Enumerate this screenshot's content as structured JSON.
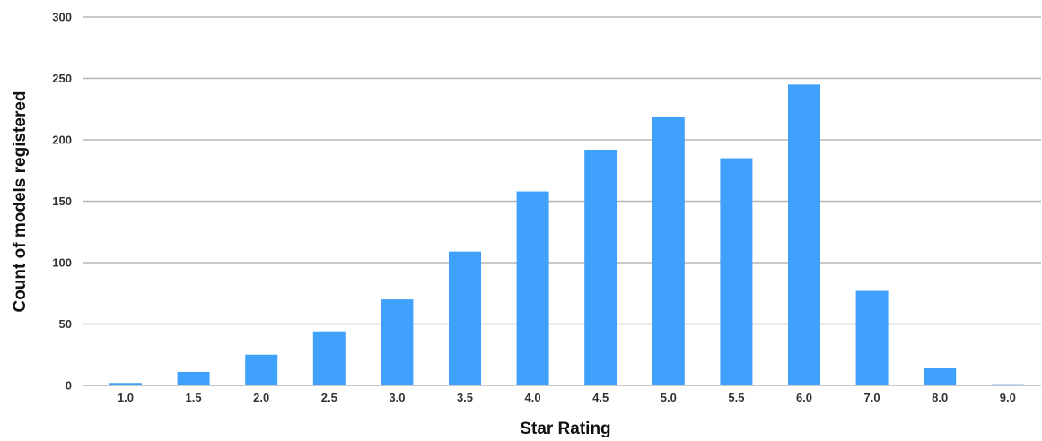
{
  "chart_data": {
    "type": "bar",
    "title": "",
    "xlabel": "Star Rating",
    "ylabel": "Count of models registered",
    "categories": [
      "1.0",
      "1.5",
      "2.0",
      "2.5",
      "3.0",
      "3.5",
      "4.0",
      "4.5",
      "5.0",
      "5.5",
      "6.0",
      "7.0",
      "8.0",
      "9.0"
    ],
    "values": [
      2,
      11,
      25,
      44,
      70,
      109,
      158,
      192,
      219,
      185,
      245,
      77,
      14,
      1
    ],
    "ylim": [
      0,
      300
    ],
    "yticks": [
      "0",
      "50",
      "100",
      "150",
      "200",
      "250",
      "300"
    ],
    "grid": true,
    "legend": "none",
    "bar_color": "#3fa1fb",
    "grid_color": "#b5b5b5"
  }
}
